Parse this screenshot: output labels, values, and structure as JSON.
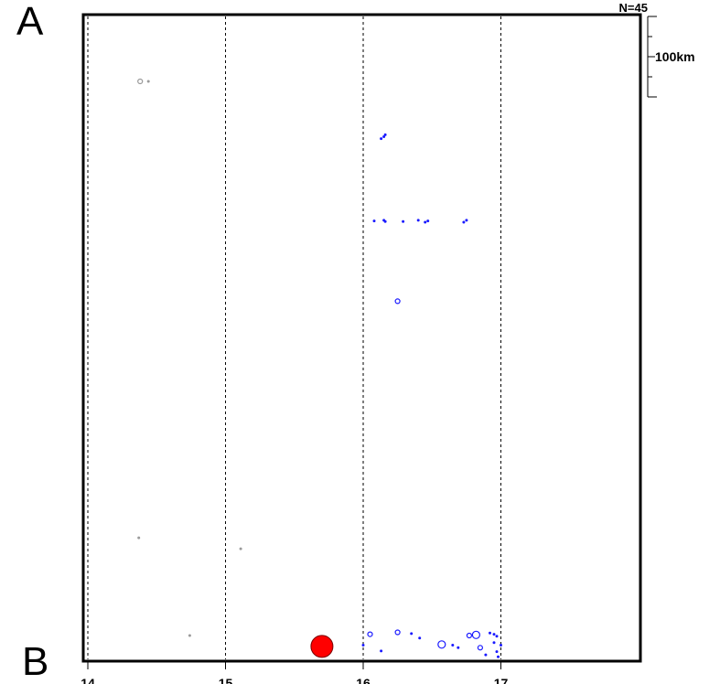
{
  "panel_labels": {
    "top": "A",
    "bottom": "B"
  },
  "count_label": "N=45",
  "scale_bar_label": "100km",
  "colors": {
    "frame": "#000000",
    "blue_events": "#1a1aff",
    "gray_events": "#9a9a9a",
    "main_event": "#ff0000",
    "main_event_edge": "#7a0000"
  },
  "chart_data": {
    "type": "scatter",
    "x_ticks": [
      "14",
      "15",
      "16",
      "17"
    ],
    "x_tick_values": [
      14,
      15,
      16,
      17
    ],
    "xlim": [
      13.98,
      18.0
    ],
    "ylim": [
      0,
      100
    ],
    "grid": "vertical dashed lines at integer x",
    "series": [
      {
        "color": "blue",
        "points": [
          [
            16.13,
            81.0
          ],
          [
            16.15,
            81.3
          ],
          [
            16.16,
            81.6
          ],
          [
            16.08,
            68.2
          ],
          [
            16.15,
            68.3
          ],
          [
            16.16,
            68.1
          ],
          [
            16.29,
            68.1
          ],
          [
            16.4,
            68.3
          ],
          [
            16.45,
            68.0
          ],
          [
            16.47,
            68.2
          ],
          [
            16.73,
            68.0
          ],
          [
            16.75,
            68.3
          ],
          [
            16.25,
            55.7
          ],
          [
            16.0,
            2.2
          ],
          [
            16.05,
            3.9
          ],
          [
            16.13,
            1.3
          ],
          [
            16.25,
            4.2
          ],
          [
            16.35,
            4.0
          ],
          [
            16.41,
            3.3
          ],
          [
            16.57,
            2.3
          ],
          [
            16.65,
            2.2
          ],
          [
            16.69,
            1.8
          ],
          [
            16.77,
            3.7
          ],
          [
            16.82,
            3.8
          ],
          [
            16.85,
            1.8
          ],
          [
            16.89,
            0.7
          ],
          [
            16.92,
            4.1
          ],
          [
            16.95,
            3.9
          ],
          [
            16.95,
            2.6
          ],
          [
            16.97,
            3.6
          ],
          [
            16.97,
            1.2
          ],
          [
            16.98,
            0.4
          ],
          [
            17.0,
            2.2
          ]
        ],
        "sizes": [
          1,
          1,
          1,
          1,
          1,
          1,
          1,
          1,
          1,
          1,
          1,
          1,
          2,
          1,
          2,
          1,
          2,
          1,
          1,
          3,
          1,
          1,
          2,
          3,
          2,
          1,
          1,
          1,
          1,
          1,
          1,
          1,
          1
        ]
      },
      {
        "color": "gray",
        "points": [
          [
            14.38,
            89.9
          ],
          [
            14.44,
            89.9
          ],
          [
            14.37,
            18.9
          ],
          [
            15.11,
            17.2
          ],
          [
            14.74,
            3.7
          ]
        ],
        "sizes": [
          2,
          1,
          1,
          1,
          1
        ]
      },
      {
        "color": "red",
        "points": [
          [
            15.7,
            2.0
          ]
        ],
        "sizes": [
          6
        ]
      }
    ]
  }
}
